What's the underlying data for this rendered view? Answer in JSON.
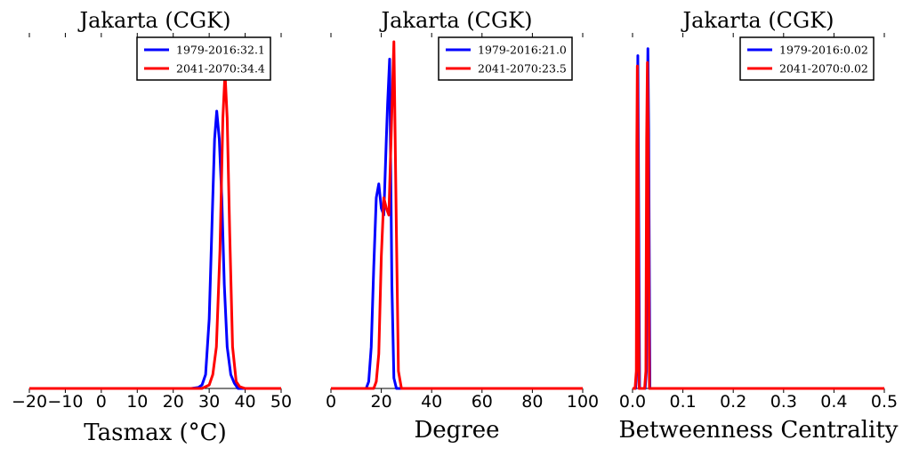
{
  "chart_data": [
    {
      "type": "line",
      "title": "Jakarta (CGK)",
      "xlabel": "Tasmax ($^\\circ$C)",
      "xlabel_display": "Tasmax (°C)",
      "xlim": [
        -20,
        50
      ],
      "ylim": [
        0,
        1
      ],
      "xticks": [
        -20,
        -10,
        0,
        10,
        20,
        30,
        40,
        50
      ],
      "xtick_labels": [
        "−20",
        "−10",
        "0",
        "10",
        "20",
        "30",
        "40",
        "50"
      ],
      "legend_position": "upper right",
      "series": [
        {
          "name": "1979-2016:32.1",
          "color": "#0000ff",
          "x": [
            -20,
            25,
            27,
            28,
            29,
            30,
            31,
            31.5,
            32.1,
            32.8,
            33.5,
            34.2,
            35,
            36,
            37,
            38,
            50
          ],
          "y": [
            0,
            0,
            0.003,
            0.01,
            0.04,
            0.2,
            0.55,
            0.72,
            0.8,
            0.72,
            0.55,
            0.3,
            0.12,
            0.04,
            0.015,
            0,
            0
          ]
        },
        {
          "name": "2041-2070:34.4",
          "color": "#ff0000",
          "x": [
            -20,
            28,
            30,
            31,
            32,
            33,
            33.8,
            34.4,
            35,
            35.7,
            36.5,
            37.5,
            38.5,
            40,
            50
          ],
          "y": [
            0,
            0,
            0.01,
            0.04,
            0.12,
            0.4,
            0.78,
            0.91,
            0.78,
            0.45,
            0.12,
            0.02,
            0.005,
            0,
            0
          ]
        }
      ]
    },
    {
      "type": "line",
      "title": "Jakarta (CGK)",
      "xlabel": "Degree",
      "xlim": [
        0,
        100
      ],
      "ylim": [
        0,
        1
      ],
      "xticks": [
        0,
        20,
        40,
        60,
        80,
        100
      ],
      "xtick_labels": [
        "0",
        "20",
        "40",
        "60",
        "80",
        "100"
      ],
      "legend_position": "upper right",
      "series": [
        {
          "name": "1979-2016:21.0",
          "color": "#0000ff",
          "x": [
            0,
            14,
            15,
            16,
            17,
            18,
            19,
            20,
            21,
            22,
            22.5,
            23.3,
            24.2,
            25,
            26,
            100
          ],
          "y": [
            0,
            0,
            0.02,
            0.12,
            0.35,
            0.55,
            0.59,
            0.52,
            0.5,
            0.72,
            0.82,
            0.95,
            0.3,
            0.03,
            0,
            0
          ]
        },
        {
          "name": "2041-2070:23.5",
          "color": "#ff0000",
          "x": [
            0,
            17,
            18,
            19,
            20,
            21,
            22,
            23,
            24,
            25,
            26,
            26.8,
            28,
            100
          ],
          "y": [
            0,
            0,
            0.02,
            0.1,
            0.38,
            0.55,
            0.52,
            0.5,
            0.75,
            1.0,
            0.45,
            0.05,
            0,
            0
          ]
        }
      ]
    },
    {
      "type": "line",
      "title": "Jakarta (CGK)",
      "xlabel": "Betweenness Centrality",
      "xlim": [
        0,
        0.5
      ],
      "ylim": [
        0,
        1
      ],
      "xticks": [
        0,
        0.1,
        0.2,
        0.3,
        0.4,
        0.5
      ],
      "xtick_labels": [
        "0.0",
        "0.1",
        "0.2",
        "0.3",
        "0.4",
        "0.5"
      ],
      "legend_position": "upper right",
      "series": [
        {
          "name": "1979-2016:0.02",
          "color": "#0000ff",
          "x": [
            0,
            0.006,
            0.0085,
            0.0095,
            0.0105,
            0.0115,
            0.014,
            0.025,
            0.0275,
            0.029,
            0.0305,
            0.032,
            0.0345,
            0.5
          ],
          "y": [
            0,
            0,
            0.05,
            0.7,
            0.96,
            0.7,
            0,
            0,
            0.05,
            0.75,
            0.98,
            0.75,
            0,
            0
          ]
        },
        {
          "name": "2041-2070:0.02",
          "color": "#ff0000",
          "x": [
            0,
            0.005,
            0.0075,
            0.0085,
            0.0095,
            0.0105,
            0.013,
            0.024,
            0.0265,
            0.028,
            0.0295,
            0.031,
            0.0335,
            0.5
          ],
          "y": [
            0,
            0,
            0.05,
            0.7,
            0.93,
            0.7,
            0,
            0,
            0.05,
            0.72,
            0.94,
            0.72,
            0,
            0
          ]
        }
      ]
    }
  ]
}
